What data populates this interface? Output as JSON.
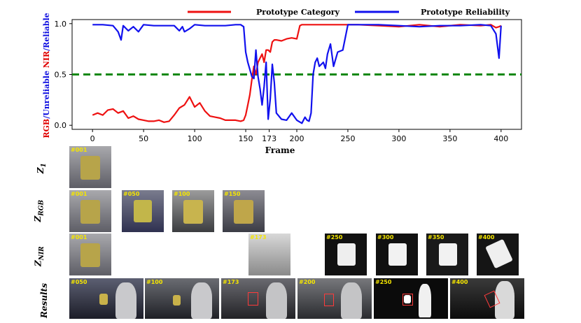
{
  "chart_data": {
    "type": "line",
    "xlabel": "Frame",
    "ylabel_parts": [
      {
        "text": "RGB",
        "color": "#e00000"
      },
      {
        "text": "/Unreliable ",
        "color": "#1010e0"
      },
      {
        "text": "NIR",
        "color": "#e00000"
      },
      {
        "text": "/Reliable",
        "color": "#1010e0"
      }
    ],
    "xticks": [
      0,
      50,
      100,
      150,
      173,
      200,
      250,
      300,
      350,
      400
    ],
    "yticks": [
      "0.0",
      "0.5",
      "1.0"
    ],
    "xlim": [
      -20,
      420
    ],
    "ylim": [
      -0.04,
      1.04
    ],
    "threshold": 0.5,
    "threshold_color": "#118811",
    "series": [
      {
        "name": "Prototype Category",
        "color": "#ee1111",
        "x": [
          0,
          5,
          10,
          15,
          20,
          25,
          30,
          35,
          40,
          45,
          50,
          55,
          60,
          65,
          70,
          75,
          80,
          85,
          90,
          95,
          100,
          105,
          110,
          115,
          120,
          125,
          130,
          135,
          140,
          145,
          148,
          150,
          152,
          154,
          156,
          158,
          160,
          162,
          164,
          166,
          168,
          170,
          172,
          174,
          176,
          178,
          180,
          185,
          190,
          195,
          200,
          203,
          205,
          210,
          220,
          240,
          260,
          280,
          300,
          320,
          340,
          360,
          380,
          390,
          395,
          398,
          400
        ],
        "y": [
          0.1,
          0.12,
          0.1,
          0.15,
          0.16,
          0.12,
          0.14,
          0.07,
          0.09,
          0.06,
          0.05,
          0.04,
          0.04,
          0.05,
          0.03,
          0.04,
          0.1,
          0.17,
          0.2,
          0.28,
          0.18,
          0.22,
          0.14,
          0.09,
          0.08,
          0.07,
          0.05,
          0.05,
          0.05,
          0.04,
          0.05,
          0.1,
          0.2,
          0.3,
          0.45,
          0.58,
          0.5,
          0.62,
          0.66,
          0.7,
          0.62,
          0.74,
          0.74,
          0.72,
          0.82,
          0.84,
          0.84,
          0.83,
          0.85,
          0.86,
          0.85,
          0.98,
          0.99,
          0.99,
          0.99,
          0.99,
          0.99,
          0.98,
          0.97,
          0.99,
          0.97,
          0.99,
          0.98,
          0.99,
          0.96,
          0.97,
          0.98
        ]
      },
      {
        "name": "Prototype Reliability",
        "color": "#1111ee",
        "x": [
          0,
          10,
          20,
          25,
          28,
          30,
          35,
          40,
          45,
          50,
          60,
          70,
          80,
          85,
          88,
          90,
          95,
          100,
          110,
          120,
          130,
          140,
          145,
          148,
          150,
          152,
          154,
          156,
          158,
          160,
          162,
          164,
          166,
          168,
          170,
          172,
          174,
          176,
          178,
          180,
          185,
          190,
          195,
          200,
          205,
          208,
          210,
          212,
          214,
          216,
          218,
          220,
          222,
          224,
          226,
          228,
          230,
          233,
          236,
          240,
          245,
          250,
          260,
          280,
          300,
          320,
          340,
          360,
          380,
          390,
          395,
          398,
          400
        ],
        "y": [
          0.99,
          0.99,
          0.98,
          0.92,
          0.84,
          0.98,
          0.93,
          0.97,
          0.92,
          0.99,
          0.98,
          0.98,
          0.98,
          0.93,
          0.97,
          0.92,
          0.95,
          0.99,
          0.98,
          0.98,
          0.98,
          0.99,
          0.99,
          0.97,
          0.72,
          0.62,
          0.55,
          0.48,
          0.46,
          0.74,
          0.48,
          0.36,
          0.2,
          0.38,
          0.62,
          0.06,
          0.26,
          0.6,
          0.42,
          0.12,
          0.06,
          0.05,
          0.12,
          0.05,
          0.02,
          0.08,
          0.05,
          0.04,
          0.12,
          0.5,
          0.62,
          0.66,
          0.58,
          0.6,
          0.62,
          0.56,
          0.7,
          0.8,
          0.58,
          0.72,
          0.74,
          0.99,
          0.99,
          0.99,
          0.98,
          0.97,
          0.98,
          0.98,
          0.99,
          0.98,
          0.9,
          0.66,
          0.98
        ]
      }
    ]
  },
  "rows": [
    {
      "label": "Z1"
    },
    {
      "label": "ZRGB"
    },
    {
      "label": "ZNIR"
    },
    {
      "label": "Results"
    }
  ],
  "thumbs": {
    "z1": [
      "#001"
    ],
    "zrgb": [
      "#001",
      "#050",
      "#100",
      "#150"
    ],
    "znir": [
      "#001",
      "#173",
      "#250",
      "#300",
      "#350",
      "#400"
    ],
    "results": [
      "#050",
      "#100",
      "#173",
      "#200",
      "#250",
      "#400"
    ]
  },
  "colors": {
    "red": "#ee1111",
    "blue": "#1111ee",
    "tag": "#f5e600"
  }
}
